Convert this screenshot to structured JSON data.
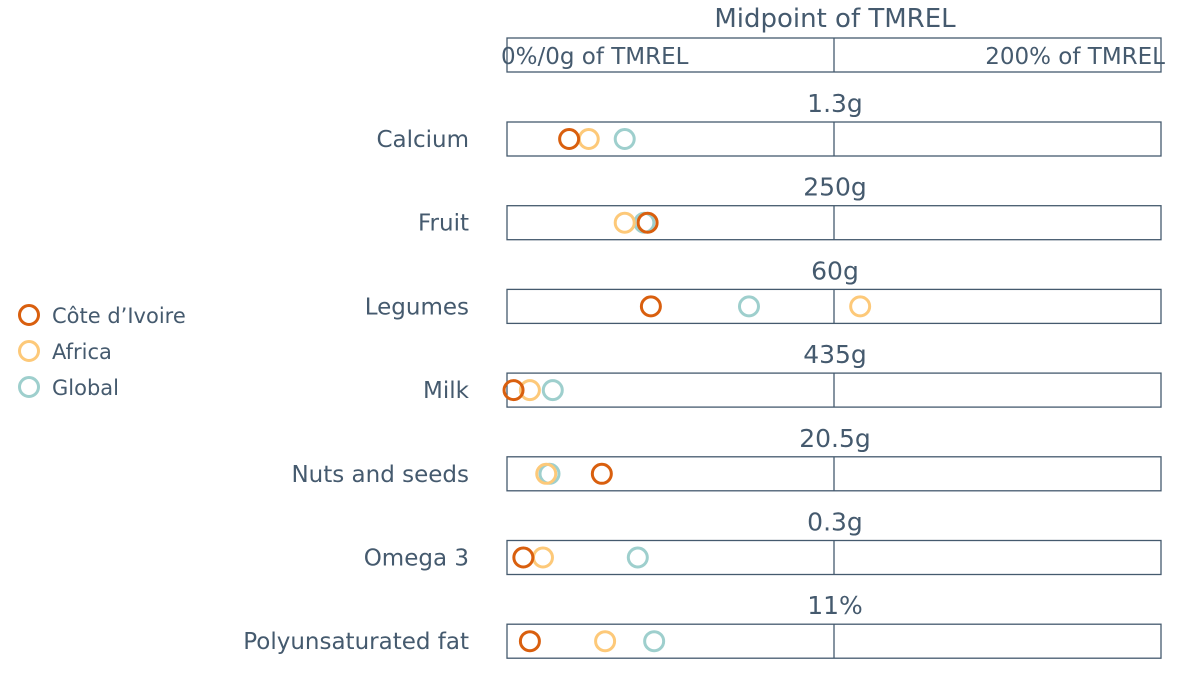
{
  "chart_data": {
    "type": "scatter",
    "header": {
      "title": "Midpoint of TMREL",
      "left_label": "0%/0g of TMREL",
      "right_label": "200% of TMREL"
    },
    "x_unit": "percent of TMREL",
    "xlim": [
      0,
      200
    ],
    "categories": [
      "Calcium",
      "Fruit",
      "Legumes",
      "Milk",
      "Nuts and seeds",
      "Omega 3",
      "Polyunsaturated fat"
    ],
    "midpoints": [
      "1.3g",
      "250g",
      "60g",
      "435g",
      "20.5g",
      "0.3g",
      "11%"
    ],
    "series": [
      {
        "name": "Côte d’Ivoire",
        "color": "#d95f0e",
        "values": [
          19,
          43,
          44,
          2,
          29,
          5,
          7
        ]
      },
      {
        "name": "Africa",
        "color": "#fdc979",
        "values": [
          25,
          36,
          108,
          7,
          12,
          11,
          30
        ]
      },
      {
        "name": "Global",
        "color": "#9ecfcd",
        "values": [
          36,
          42,
          74,
          14,
          13,
          40,
          45
        ]
      }
    ],
    "legend_position": "left"
  }
}
